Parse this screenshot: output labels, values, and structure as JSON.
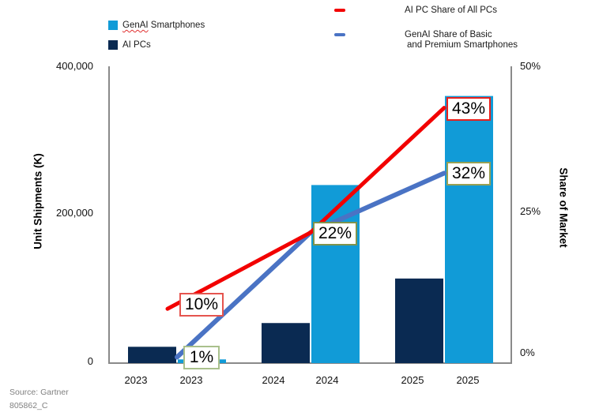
{
  "legend": {
    "genai_smartphones": {
      "underlined": "GenAI",
      "rest": " Smartphones",
      "swatch": "#119BD7"
    },
    "ai_pcs": {
      "label": "AI PCs",
      "swatch": "#0A2A52"
    },
    "ai_pc_share": {
      "label": "AI PC Share of All PCs",
      "swatch": "#F20000"
    },
    "genai_share": {
      "line1": "GenAI Share of Basic",
      "line2": "and Premium Smartphones",
      "swatch": "#4A73C4"
    }
  },
  "source": {
    "line1": "Source: Gartner",
    "line2": "805862_C"
  },
  "chart_data": {
    "type": "bar+line",
    "categories": [
      "2023",
      "2024",
      "2025"
    ],
    "x_tick_labels": [
      "2023",
      "2023",
      "2024",
      "2024",
      "2025",
      "2025"
    ],
    "left_axis": {
      "title": "Unit Shipments (K)",
      "ticks": [
        "400,000",
        "200,000",
        "0"
      ],
      "ylim": [
        0,
        400000
      ]
    },
    "right_axis": {
      "title": "Share of Market",
      "ticks": [
        "50%",
        "25%",
        "0%"
      ],
      "ylim_pct": [
        0,
        50
      ]
    },
    "bar_series": [
      {
        "name": "AI PCs",
        "color": "#0A2A52",
        "values": [
          22000,
          54000,
          114000
        ]
      },
      {
        "name": "GenAI Smartphones",
        "color": "#119BD7",
        "values": [
          5000,
          240000,
          360000
        ]
      }
    ],
    "line_series": [
      {
        "name": "AI PC Share of All PCs",
        "color": "#F20000",
        "values_pct": [
          10,
          22,
          43
        ]
      },
      {
        "name": "GenAI Share of Basic and Premium Smartphones",
        "color": "#4A73C4",
        "values_pct": [
          1,
          22,
          32
        ]
      }
    ],
    "annotations": [
      {
        "label": "10%",
        "series": 0,
        "year_index": 0,
        "border": "#E5544E"
      },
      {
        "label": "1%",
        "series": 1,
        "year_index": 0,
        "border": "#A9C08C"
      },
      {
        "label": "22%",
        "series": 0,
        "year_index": 1,
        "border": "#7F934D"
      },
      {
        "label": "43%",
        "series": 0,
        "year_index": 2,
        "border": "#E8211D"
      },
      {
        "label": "32%",
        "series": 1,
        "year_index": 2,
        "border": "#97A054"
      }
    ],
    "grid": false,
    "legend_position": "top"
  }
}
